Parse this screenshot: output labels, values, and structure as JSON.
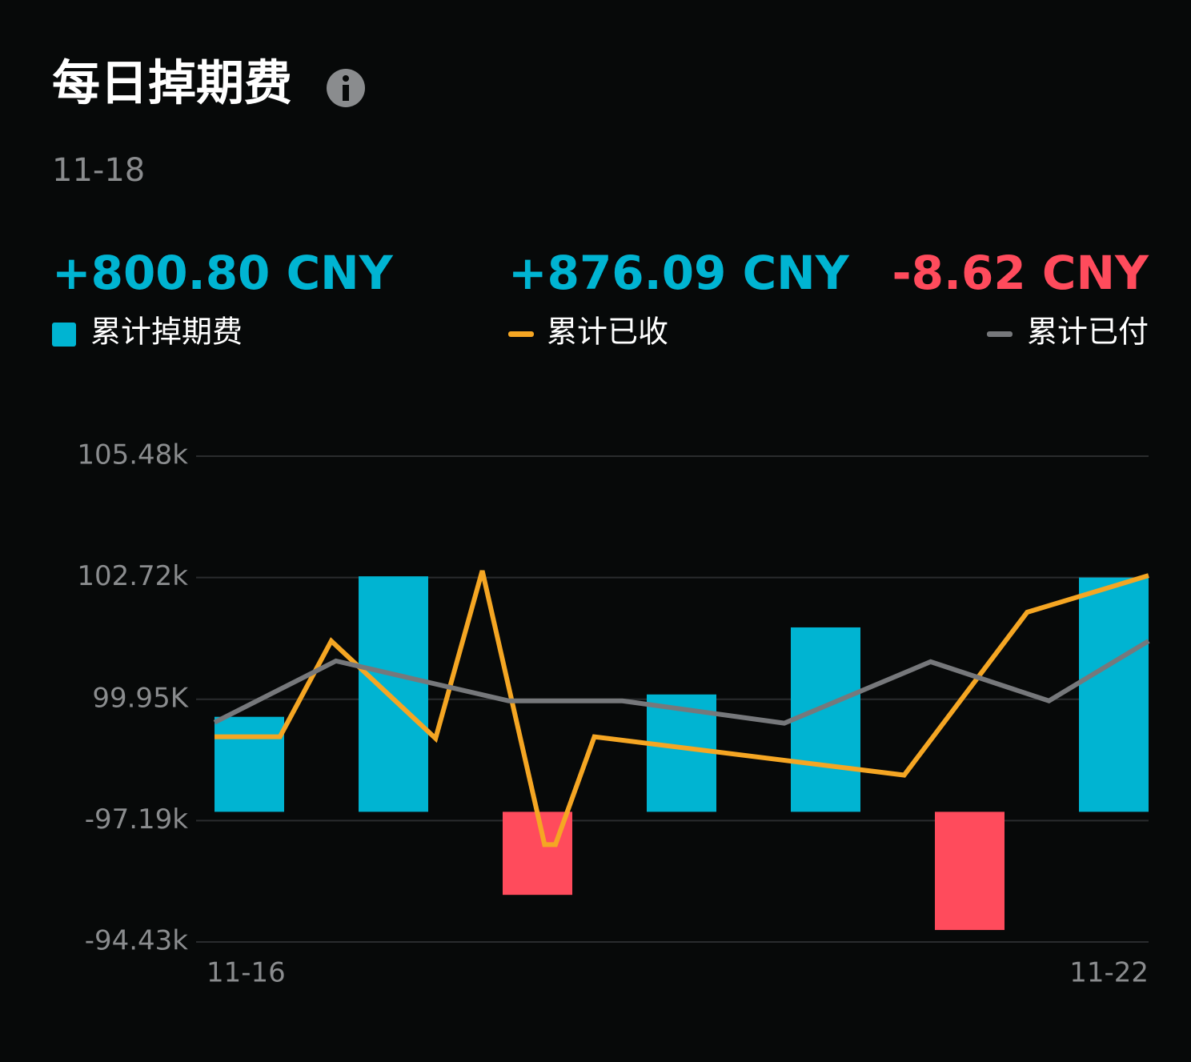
{
  "chart_data": {
    "type": "bar-line",
    "title": "每日掉期费",
    "subtitle": "11-18",
    "categories": [
      "11-16",
      null,
      null,
      null,
      null,
      null,
      "11-22"
    ],
    "xlim": [
      0,
      6
    ],
    "ylim": [
      94430,
      105480
    ],
    "yticks": [
      {
        "value": 105480,
        "label": "105.48k"
      },
      {
        "value": 102720,
        "label": "102.72k"
      },
      {
        "value": 99950,
        "label": "99.95K"
      },
      {
        "value": 97190,
        "label": "-97.19k"
      },
      {
        "value": 94430,
        "label": "-94.43k"
      }
    ],
    "grid": true,
    "series": [
      {
        "name": "累计掉期费",
        "type": "bar",
        "color": "#00b4d2",
        "negative_color": "#ff4b5c",
        "total_label": "+800.80 CNY",
        "total_color": "#00b4d2",
        "values": [
          99551,
          102747,
          95501,
          100060,
          101585,
          94702,
          102720
        ]
      },
      {
        "name": "累计已收",
        "type": "line",
        "color": "#f5a623",
        "total_label": "+876.09 CNY",
        "total_color": "#00b4d2",
        "x": [
          0,
          0.42,
          0.75,
          1.42,
          1.72,
          2.12,
          2.19,
          2.44,
          4.43,
          5.22,
          6
        ],
        "values": [
          99097,
          99097,
          101276,
          99060,
          102874,
          96645,
          96645,
          99097,
          98225,
          101930,
          102765
        ]
      },
      {
        "name": "累计已付",
        "type": "line",
        "color": "#76787b",
        "total_label": "-8.62 CNY",
        "total_color": "#ff4b5c",
        "x": [
          0,
          0.78,
          1.89,
          2.62,
          3.66,
          4.6,
          5.36,
          6
        ],
        "values": [
          99424,
          100822,
          99914,
          99914,
          99406,
          100804,
          99914,
          101276
        ]
      }
    ]
  }
}
